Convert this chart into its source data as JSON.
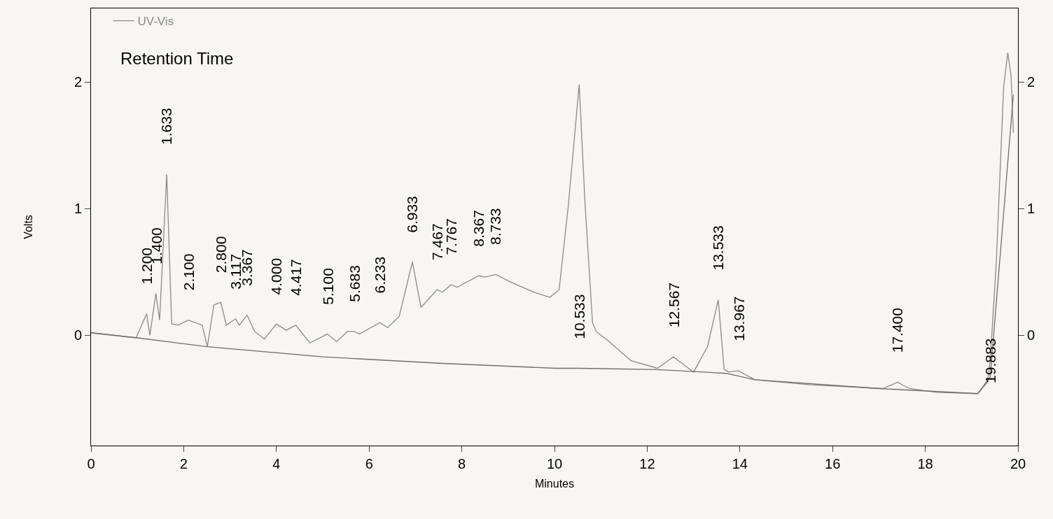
{
  "chart_data": {
    "type": "line",
    "xlabel": "Minutes",
    "ylabel": "Volts",
    "xlim": [
      0,
      20
    ],
    "xticks": [
      0,
      2,
      4,
      6,
      8,
      10,
      12,
      14,
      16,
      18,
      20
    ],
    "ylim": [
      -0.87,
      2.58
    ],
    "yticks": [
      0,
      1,
      2
    ],
    "y2lim": [
      -0.87,
      2.58
    ],
    "y2ticks": [
      0,
      1,
      2
    ],
    "legend": "top left",
    "grid": false,
    "marker": "none",
    "line_style": "solid",
    "series": [
      {
        "name": "UV-Vis",
        "color": "#8a8a8a",
        "x": [
          0,
          0.97,
          1.2,
          1.27,
          1.4,
          1.48,
          1.633,
          1.74,
          1.88,
          2.1,
          2.4,
          2.51,
          2.65,
          2.8,
          2.92,
          3.117,
          3.2,
          3.367,
          3.53,
          3.74,
          4.0,
          4.21,
          4.417,
          4.72,
          5.1,
          5.3,
          5.53,
          5.683,
          5.79,
          6.233,
          6.4,
          6.65,
          6.933,
          7.12,
          7.467,
          7.58,
          7.767,
          7.9,
          8.367,
          8.5,
          8.733,
          9.06,
          9.56,
          9.9,
          10.1,
          10.3,
          10.533,
          10.66,
          10.82,
          10.9,
          11.15,
          11.65,
          12.22,
          12.567,
          13.0,
          13.3,
          13.533,
          13.66,
          13.76,
          13.967,
          14.32,
          15.52,
          17.09,
          17.4,
          17.66,
          18.24,
          19.13,
          19.34,
          19.4,
          19.53,
          19.69,
          19.78,
          19.85,
          19.9
        ],
        "values": [
          0.02,
          -0.02,
          0.17,
          0.0,
          0.33,
          0.12,
          1.27,
          0.09,
          0.08,
          0.12,
          0.08,
          -0.09,
          0.24,
          0.26,
          0.08,
          0.13,
          0.08,
          0.16,
          0.03,
          -0.03,
          0.09,
          0.04,
          0.08,
          -0.06,
          0.01,
          -0.05,
          0.03,
          0.03,
          0.01,
          0.1,
          0.06,
          0.15,
          0.58,
          0.22,
          0.36,
          0.34,
          0.4,
          0.38,
          0.47,
          0.46,
          0.48,
          0.42,
          0.34,
          0.3,
          0.36,
          1.03,
          1.98,
          1.03,
          0.1,
          0.03,
          -0.04,
          -0.2,
          -0.26,
          -0.17,
          -0.29,
          -0.09,
          0.28,
          -0.27,
          -0.29,
          -0.28,
          -0.35,
          -0.39,
          -0.42,
          -0.37,
          -0.42,
          -0.45,
          -0.46,
          -0.37,
          -0.2,
          0.56,
          1.96,
          2.23,
          2.05,
          1.6
        ]
      },
      {
        "color": "#6e6e6e",
        "x": [
          0,
          1,
          2.5,
          5,
          7.5,
          10,
          10.533,
          12.2,
          13.7,
          14.32,
          17,
          19.13,
          19.4,
          19.9
        ],
        "values": [
          0.02,
          -0.02,
          -0.09,
          -0.17,
          -0.22,
          -0.26,
          -0.26,
          -0.27,
          -0.3,
          -0.35,
          -0.42,
          -0.46,
          -0.33,
          1.9
        ]
      }
    ],
    "annotations": [
      "Retention Time",
      {
        "text": "1.200",
        "x": 1.2,
        "y": 0.17
      },
      {
        "text": "1.400",
        "x": 1.4,
        "y": 0.33
      },
      {
        "text": "1.633",
        "x": 1.633,
        "y": 1.27
      },
      {
        "text": "2.100",
        "x": 2.1,
        "y": 0.12
      },
      {
        "text": "2.800",
        "x": 2.8,
        "y": 0.26
      },
      {
        "text": "3.117",
        "x": 3.117,
        "y": 0.13
      },
      {
        "text": "3.367",
        "x": 3.367,
        "y": 0.16
      },
      {
        "text": "4.000",
        "x": 4.0,
        "y": 0.09
      },
      {
        "text": "4.417",
        "x": 4.417,
        "y": 0.08
      },
      {
        "text": "5.100",
        "x": 5.1,
        "y": 0.01
      },
      {
        "text": "5.683",
        "x": 5.683,
        "y": 0.03
      },
      {
        "text": "6.233",
        "x": 6.233,
        "y": 0.1
      },
      {
        "text": "6.933",
        "x": 6.933,
        "y": 0.58
      },
      {
        "text": "7.467",
        "x": 7.467,
        "y": 0.36
      },
      {
        "text": "7.767",
        "x": 7.767,
        "y": 0.4
      },
      {
        "text": "8.367",
        "x": 8.367,
        "y": 0.47
      },
      {
        "text": "8.733",
        "x": 8.733,
        "y": 0.48
      },
      {
        "text": "10.533",
        "x": 10.533,
        "y": -0.26
      },
      {
        "text": "12.567",
        "x": 12.567,
        "y": -0.17
      },
      {
        "text": "13.533",
        "x": 13.533,
        "y": 0.28
      },
      {
        "text": "13.967",
        "x": 13.967,
        "y": -0.28
      },
      {
        "text": "17.400",
        "x": 17.4,
        "y": -0.37
      },
      {
        "text": "19.883",
        "x": 19.4,
        "y": -0.2
      }
    ]
  }
}
